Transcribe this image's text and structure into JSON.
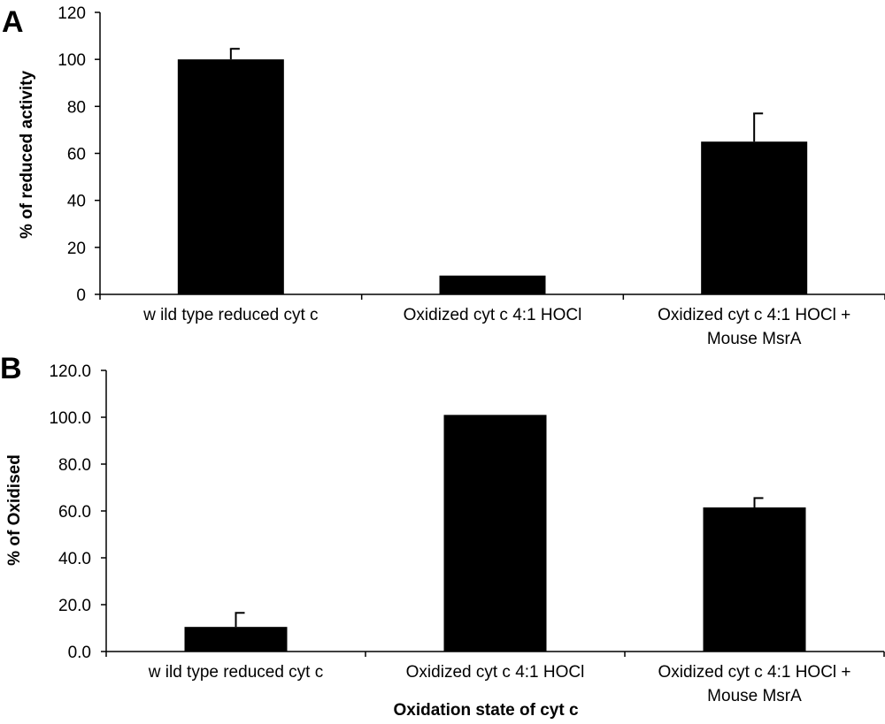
{
  "chart_data": [
    {
      "panel": "A",
      "type": "bar",
      "categories": [
        [
          "w ild type reduced cyt c"
        ],
        [
          "Oxidized cyt c 4:1 HOCl"
        ],
        [
          "Oxidized cyt c 4:1 HOCl +",
          "Mouse MsrA"
        ]
      ],
      "values": [
        100,
        8,
        65
      ],
      "errors": [
        4.5,
        0,
        12
      ],
      "title": "",
      "xlabel": "",
      "ylabel": "% of reduced activity",
      "ylim": [
        0,
        120
      ],
      "yticks": [
        0,
        20,
        40,
        60,
        80,
        100,
        120
      ],
      "yticklabels": [
        "0",
        "20",
        "40",
        "60",
        "80",
        "100",
        "120"
      ],
      "bar_color": "#000000",
      "grid": false
    },
    {
      "panel": "B",
      "type": "bar",
      "categories": [
        [
          "w ild type reduced cyt c"
        ],
        [
          "Oxidized cyt c 4:1 HOCl"
        ],
        [
          "Oxidized cyt c 4:1 HOCl +",
          "Mouse MsrA"
        ]
      ],
      "values": [
        10.5,
        101,
        61.5
      ],
      "errors": [
        6,
        0,
        4
      ],
      "title": "",
      "xlabel": "Oxidation state of cyt c",
      "ylabel": "% of Oxidised",
      "ylim": [
        0,
        120
      ],
      "yticks": [
        0,
        20,
        40,
        60,
        80,
        100,
        120
      ],
      "yticklabels": [
        "0.0",
        "20.0",
        "40.0",
        "60.0",
        "80.0",
        "100.0",
        "120.0"
      ],
      "bar_color": "#000000",
      "grid": false
    }
  ]
}
